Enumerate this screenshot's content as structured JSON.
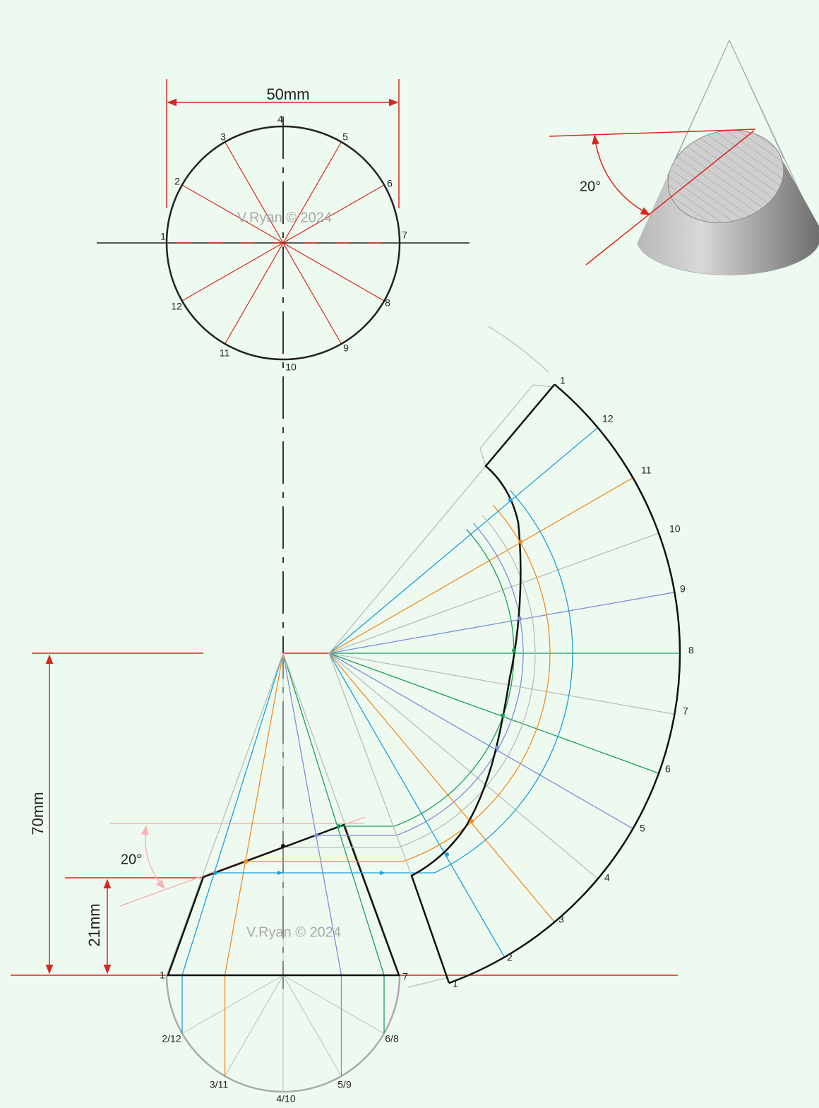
{
  "plan_view": {
    "dimension": "50mm",
    "points": [
      "1",
      "2",
      "3",
      "4",
      "5",
      "6",
      "7",
      "8",
      "9",
      "10",
      "11",
      "12"
    ],
    "watermark": "V.Ryan © 2024"
  },
  "pictorial": {
    "angle": "20°"
  },
  "elevation": {
    "height": "70mm",
    "cut_height": "21mm",
    "angle": "20°",
    "watermark": "V.Ryan © 2024",
    "base_labels": [
      "1",
      "7",
      "2/12",
      "3/11",
      "4/10",
      "5/9",
      "6/8"
    ]
  },
  "development": {
    "labels": [
      "1",
      "12",
      "11",
      "10",
      "9",
      "8",
      "7",
      "6",
      "5",
      "4",
      "3",
      "2",
      "1"
    ]
  }
}
